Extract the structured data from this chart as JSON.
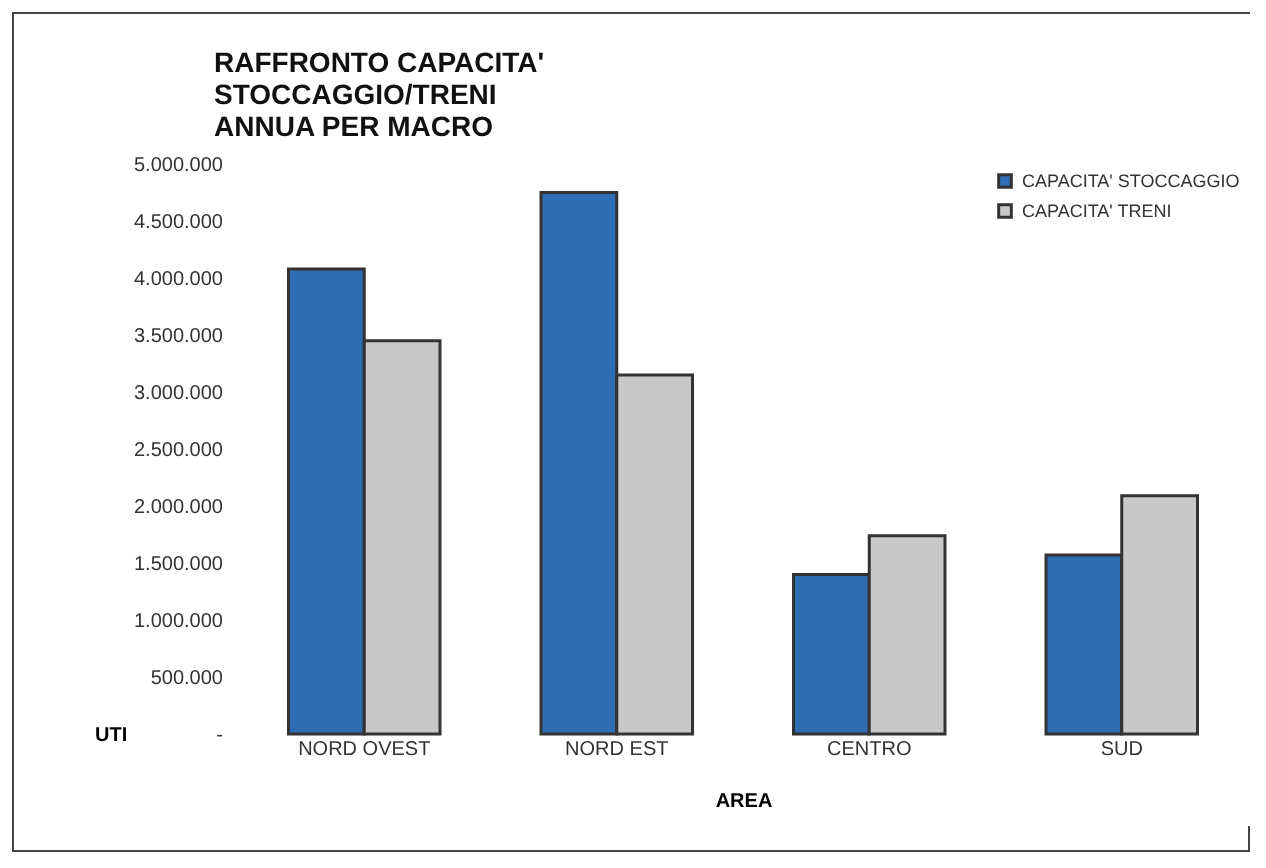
{
  "chart_data": {
    "type": "bar",
    "title": "RAFFRONTO CAPACITA' STOCCAGGIO/TRENI ANNUA PER MACRO",
    "xlabel": "AREA",
    "ylabel": "UTI",
    "categories": [
      "NORD OVEST",
      "NORD EST",
      "CENTRO",
      "SUD"
    ],
    "series": [
      {
        "name": "CAPACITA' STOCCAGGIO",
        "color": "#2e6db4",
        "values": [
          4080000,
          4750000,
          1400000,
          1570000
        ]
      },
      {
        "name": "CAPACITA' TRENI",
        "color": "#c8c8c8",
        "values": [
          3450000,
          3150000,
          1740000,
          2090000
        ]
      }
    ],
    "ylim": [
      0,
      5000000
    ],
    "yticks": [
      {
        "value": 0,
        "label": "-"
      },
      {
        "value": 500000,
        "label": "500.000"
      },
      {
        "value": 1000000,
        "label": "1.000.000"
      },
      {
        "value": 1500000,
        "label": "1.500.000"
      },
      {
        "value": 2000000,
        "label": "2.000.000"
      },
      {
        "value": 2500000,
        "label": "2.500.000"
      },
      {
        "value": 3000000,
        "label": "3.000.000"
      },
      {
        "value": 3500000,
        "label": "3.500.000"
      },
      {
        "value": 4000000,
        "label": "4.000.000"
      },
      {
        "value": 4500000,
        "label": "4.500.000"
      },
      {
        "value": 5000000,
        "label": "5.000.000"
      }
    ],
    "grid": false,
    "legend": "top right"
  }
}
